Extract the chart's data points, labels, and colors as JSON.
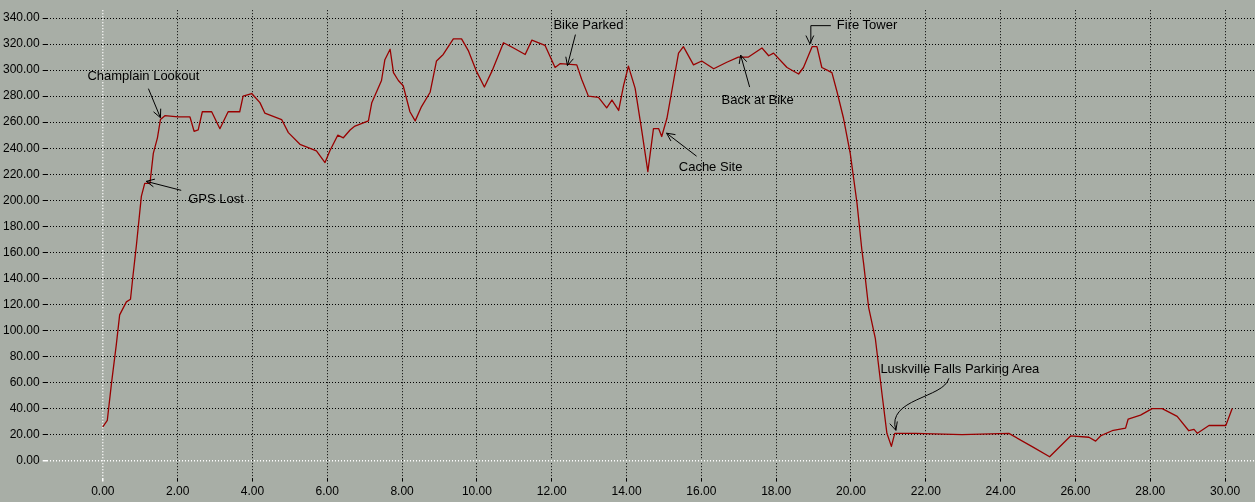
{
  "chart_data": {
    "type": "line",
    "grid": true,
    "legend": false,
    "marker": "none",
    "line_style": "solid",
    "xlim": [
      -1.5,
      30.8
    ],
    "ylim": [
      -13,
      346
    ],
    "xticks": [
      {
        "value": 0,
        "label": "0.00"
      },
      {
        "value": 2,
        "label": "2.00"
      },
      {
        "value": 4,
        "label": "4.00"
      },
      {
        "value": 6,
        "label": "6.00"
      },
      {
        "value": 8,
        "label": "8.00"
      },
      {
        "value": 10,
        "label": "10.00"
      },
      {
        "value": 12,
        "label": "12.00"
      },
      {
        "value": 14,
        "label": "14.00"
      },
      {
        "value": 16,
        "label": "16.00"
      },
      {
        "value": 18,
        "label": "18.00"
      },
      {
        "value": 20,
        "label": "20.00"
      },
      {
        "value": 22,
        "label": "22.00"
      },
      {
        "value": 24,
        "label": "24.00"
      },
      {
        "value": 26,
        "label": "26.00"
      },
      {
        "value": 28,
        "label": "28.00"
      },
      {
        "value": 30,
        "label": "30.00"
      }
    ],
    "yticks": [
      {
        "value": 0,
        "label": "0.00"
      },
      {
        "value": 20,
        "label": "20.00"
      },
      {
        "value": 40,
        "label": "40.00"
      },
      {
        "value": 60,
        "label": "60.00"
      },
      {
        "value": 80,
        "label": "80.00"
      },
      {
        "value": 100,
        "label": "100.00"
      },
      {
        "value": 120,
        "label": "120.00"
      },
      {
        "value": 140,
        "label": "140.00"
      },
      {
        "value": 160,
        "label": "160.00"
      },
      {
        "value": 180,
        "label": "180.00"
      },
      {
        "value": 200,
        "label": "200.00"
      },
      {
        "value": 220,
        "label": "220.00"
      },
      {
        "value": 240,
        "label": "240.00"
      },
      {
        "value": 260,
        "label": "260.00"
      },
      {
        "value": 280,
        "label": "280.00"
      },
      {
        "value": 300,
        "label": "300.00"
      },
      {
        "value": 320,
        "label": "320.00"
      },
      {
        "value": 340,
        "label": "340.00"
      }
    ],
    "series": [
      {
        "color": "#990000",
        "x": [
          0,
          0.12,
          0.23,
          0.36,
          0.45,
          0.63,
          0.74,
          0.81,
          0.9,
          1.03,
          1.12,
          1.26,
          1.35,
          1.46,
          1.54,
          1.66,
          2.01,
          2.33,
          2.44,
          2.55,
          2.66,
          2.91,
          3.13,
          3.35,
          3.66,
          3.75,
          3.98,
          4.2,
          4.33,
          4.78,
          4.96,
          5.27,
          5.71,
          5.94,
          6.07,
          6.28,
          6.43,
          6.61,
          6.74,
          7.1,
          7.19,
          7.45,
          7.54,
          7.68,
          7.77,
          7.9,
          8.03,
          8.21,
          8.35,
          8.52,
          8.75,
          8.92,
          9.1,
          9.37,
          9.59,
          9.77,
          9.99,
          10.2,
          10.4,
          10.71,
          10.98,
          11.29,
          11.47,
          11.82,
          12.09,
          12.23,
          12.67,
          12.8,
          12.98,
          13.25,
          13.47,
          13.61,
          13.79,
          13.92,
          14.05,
          14.23,
          14.41,
          14.57,
          14.72,
          14.86,
          14.94,
          15.08,
          15.26,
          15.39,
          15.52,
          15.79,
          16.01,
          16.33,
          16.68,
          16.99,
          17.26,
          17.62,
          17.8,
          17.93,
          18.29,
          18.6,
          18.73,
          18.96,
          19.09,
          19.22,
          19.36,
          19.49,
          19.63,
          19.8,
          19.98,
          20.16,
          20.29,
          20.34,
          20.47,
          20.65,
          20.83,
          20.96,
          21.08,
          21.17,
          21.72,
          22.97,
          24.22,
          24.89,
          25.31,
          25.87,
          26.36,
          26.54,
          26.67,
          26.98,
          27.34,
          27.41,
          27.74,
          28.05,
          28.32,
          28.72,
          29.03,
          29.17,
          29.26,
          29.57,
          30.02,
          30.19
        ],
        "values": [
          26,
          31,
          59,
          89,
          112,
          122,
          124,
          143,
          166,
          203,
          213,
          213,
          236,
          248,
          262,
          265,
          264,
          264,
          253,
          254,
          268,
          268,
          255,
          268,
          268,
          280,
          282,
          275,
          267,
          262,
          252,
          243,
          238,
          229,
          238,
          250,
          248,
          254,
          257,
          261,
          275,
          292,
          308,
          316,
          298,
          292,
          288,
          268,
          261,
          272,
          283,
          307,
          312,
          324,
          324,
          315,
          299,
          287,
          299,
          321,
          317,
          312,
          323,
          319,
          302,
          305,
          304,
          293,
          280,
          279,
          271,
          277,
          269,
          288,
          303,
          286,
          253,
          222,
          255,
          255,
          249,
          263,
          292,
          313,
          318,
          304,
          307,
          301,
          306,
          310,
          310,
          317,
          311,
          313,
          302,
          297,
          302,
          318,
          318,
          302,
          300,
          298,
          283,
          263,
          236,
          198,
          162,
          151,
          118,
          94,
          51,
          21,
          11,
          21,
          21,
          20,
          21,
          10,
          3,
          19,
          18,
          15,
          19,
          23,
          25,
          32,
          35,
          40,
          40,
          34,
          23,
          24,
          21,
          27,
          27,
          40
        ]
      }
    ],
    "annotations": [
      {
        "text": "Champlain Lookout",
        "x": 1.54,
        "y": 265
      },
      {
        "text": "GPS Lost",
        "x": 1.16,
        "y": 213
      },
      {
        "text": "Bike Parked",
        "x": 12.42,
        "y": 305
      },
      {
        "text": "Cache Site",
        "x": 15.07,
        "y": 250
      },
      {
        "text": "Back at Bike",
        "x": 17.05,
        "y": 310
      },
      {
        "text": "Fire Tower",
        "x": 18.9,
        "y": 318
      },
      {
        "text": "Luskville Falls Parking Area",
        "x": 21.2,
        "y": 21
      }
    ]
  }
}
